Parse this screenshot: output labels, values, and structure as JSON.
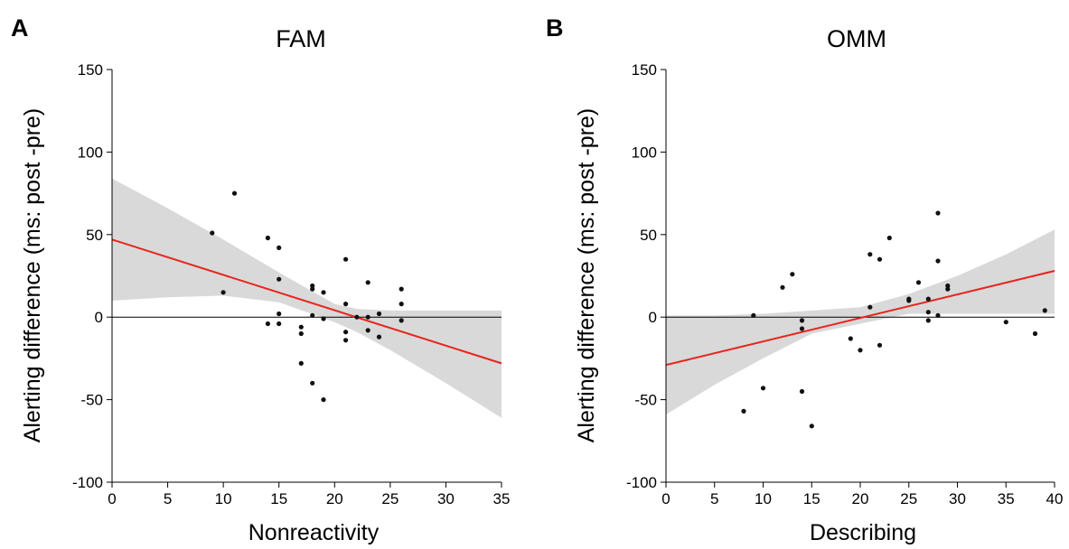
{
  "chart_data": [
    {
      "type": "scatter",
      "panel": "A",
      "title": "FAM",
      "xlabel": "Nonreactivity",
      "ylabel": "Alerting difference (ms: post -pre)",
      "xlim": [
        0,
        35
      ],
      "ylim": [
        -100,
        150
      ],
      "xticks": [
        0,
        5,
        10,
        15,
        20,
        25,
        30,
        35
      ],
      "yticks": [
        -100,
        -50,
        0,
        50,
        100,
        150
      ],
      "xtick_labels": [
        "0",
        "5",
        "10",
        "15",
        "20",
        "25",
        "30",
        "35"
      ],
      "ytick_labels": [
        "-100",
        "-50",
        "0",
        "50",
        "100",
        "150"
      ],
      "zero_line": true,
      "points": [
        {
          "x": 9,
          "y": 51
        },
        {
          "x": 10,
          "y": 15
        },
        {
          "x": 11,
          "y": 75
        },
        {
          "x": 14,
          "y": 48
        },
        {
          "x": 14,
          "y": -4
        },
        {
          "x": 15,
          "y": 42
        },
        {
          "x": 15,
          "y": 23
        },
        {
          "x": 15,
          "y": 2
        },
        {
          "x": 15,
          "y": -4
        },
        {
          "x": 17,
          "y": -6
        },
        {
          "x": 17,
          "y": -10
        },
        {
          "x": 17,
          "y": -28
        },
        {
          "x": 18,
          "y": 19
        },
        {
          "x": 18,
          "y": 17
        },
        {
          "x": 18,
          "y": 1
        },
        {
          "x": 18,
          "y": -40
        },
        {
          "x": 19,
          "y": 15
        },
        {
          "x": 19,
          "y": -1
        },
        {
          "x": 19,
          "y": -50
        },
        {
          "x": 21,
          "y": 35
        },
        {
          "x": 21,
          "y": 8
        },
        {
          "x": 21,
          "y": -9
        },
        {
          "x": 21,
          "y": -14
        },
        {
          "x": 22,
          "y": 0
        },
        {
          "x": 23,
          "y": 21
        },
        {
          "x": 23,
          "y": 0
        },
        {
          "x": 23,
          "y": -8
        },
        {
          "x": 24,
          "y": 2
        },
        {
          "x": 24,
          "y": -12
        },
        {
          "x": 26,
          "y": 17
        },
        {
          "x": 26,
          "y": 8
        },
        {
          "x": 26,
          "y": -2
        }
      ],
      "fit_line": {
        "x": [
          0,
          35
        ],
        "y": [
          47,
          -28
        ],
        "color": "#e8241c"
      },
      "confidence_band": {
        "x": [
          0,
          5,
          10,
          15,
          20,
          22,
          25,
          30,
          35
        ],
        "upper": [
          84,
          66,
          47,
          27,
          8,
          5,
          4,
          4,
          4
        ],
        "lower": [
          10,
          12,
          13,
          9,
          -3,
          -9,
          -20,
          -40,
          -61
        ],
        "color": "#d9d9d9"
      }
    },
    {
      "type": "scatter",
      "panel": "B",
      "title": "OMM",
      "xlabel": "Describing",
      "ylabel": "Alerting difference (ms: post -pre)",
      "xlim": [
        0,
        40
      ],
      "ylim": [
        -100,
        150
      ],
      "xticks": [
        0,
        5,
        10,
        15,
        20,
        25,
        30,
        35,
        40
      ],
      "yticks": [
        -100,
        -50,
        0,
        50,
        100,
        150
      ],
      "xtick_labels": [
        "0",
        "5",
        "10",
        "15",
        "20",
        "25",
        "30",
        "35",
        "40"
      ],
      "ytick_labels": [
        "-100",
        "-50",
        "0",
        "50",
        "100",
        "150"
      ],
      "zero_line": true,
      "points": [
        {
          "x": 8,
          "y": -57
        },
        {
          "x": 9,
          "y": 1
        },
        {
          "x": 10,
          "y": -43
        },
        {
          "x": 12,
          "y": 18
        },
        {
          "x": 13,
          "y": 26
        },
        {
          "x": 14,
          "y": -2
        },
        {
          "x": 14,
          "y": -7
        },
        {
          "x": 14,
          "y": -45
        },
        {
          "x": 15,
          "y": -66
        },
        {
          "x": 19,
          "y": -13
        },
        {
          "x": 20,
          "y": -20
        },
        {
          "x": 21,
          "y": 38
        },
        {
          "x": 21,
          "y": 6
        },
        {
          "x": 22,
          "y": 35
        },
        {
          "x": 22,
          "y": -17
        },
        {
          "x": 23,
          "y": 48
        },
        {
          "x": 25,
          "y": 10
        },
        {
          "x": 25,
          "y": 11
        },
        {
          "x": 26,
          "y": 21
        },
        {
          "x": 27,
          "y": 11
        },
        {
          "x": 27,
          "y": 3
        },
        {
          "x": 27,
          "y": -2
        },
        {
          "x": 28,
          "y": 63
        },
        {
          "x": 28,
          "y": 34
        },
        {
          "x": 28,
          "y": 1
        },
        {
          "x": 29,
          "y": 19
        },
        {
          "x": 29,
          "y": 17
        },
        {
          "x": 35,
          "y": -3
        },
        {
          "x": 38,
          "y": -10
        },
        {
          "x": 39,
          "y": 4
        }
      ],
      "fit_line": {
        "x": [
          0,
          40
        ],
        "y": [
          -29,
          28
        ],
        "color": "#e8241c"
      },
      "confidence_band": {
        "x": [
          0,
          5,
          10,
          15,
          20,
          25,
          30,
          35,
          40
        ],
        "upper": [
          1,
          1,
          2,
          4,
          6,
          14,
          25,
          38,
          53
        ],
        "lower": [
          -59,
          -41,
          -25,
          -10,
          -4,
          2,
          2,
          2,
          2
        ],
        "color": "#d9d9d9"
      }
    }
  ]
}
